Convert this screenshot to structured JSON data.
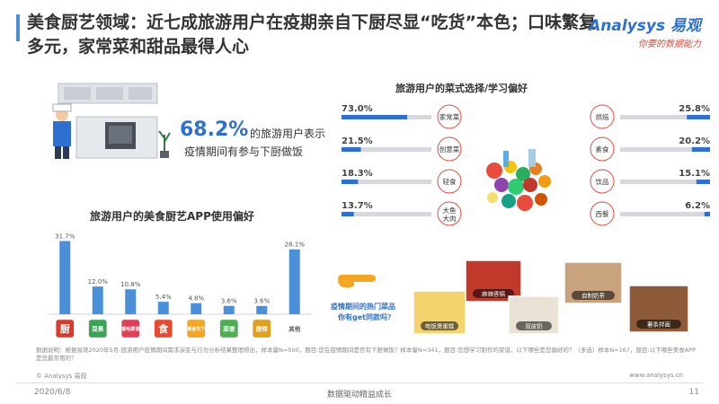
{
  "header": {
    "title": "美食厨艺领域：近七成旅游用户在疫期亲自下厨尽显“吃货”本色；口味繁复多元，家常菜和甜品最得人心",
    "brand": "Analysys 易观",
    "tagline": "你要的数据能力"
  },
  "highlight": {
    "percent": "68.2%",
    "text_line1": "的旅游用户表示",
    "text_line2": "疫情期间有参与下厨做饭"
  },
  "chart_data": [
    {
      "type": "bar",
      "title": "旅游用户的美食厨艺APP使用偏好",
      "categories": [
        "厨",
        "豆果",
        "香哈菜谱",
        "食",
        "美食天下",
        "菜谱",
        "厨师",
        "其他"
      ],
      "values": [
        31.7,
        12.0,
        10.8,
        5.4,
        4.8,
        3.6,
        3.6,
        28.1
      ],
      "value_labels": [
        "31.7%",
        "12.0%",
        "10.8%",
        "5.4%",
        "4.8%",
        "3.6%",
        "3.6%",
        "28.1%"
      ],
      "ylim": [
        0,
        35
      ],
      "colors": {
        "bar": "#4a90d9",
        "icons": [
          "#d93b2b",
          "#3aa655",
          "#e23e57",
          "#e8492f",
          "#f5a623",
          "#4caf50",
          "#e0a020",
          "#ffffff"
        ]
      }
    },
    {
      "type": "bar",
      "title": "旅游用户的菜式选择/学习偏好",
      "left": [
        {
          "name": "家常菜",
          "value": 73.0,
          "label": "73.0%"
        },
        {
          "name": "创意菜",
          "value": 21.5,
          "label": "21.5%"
        },
        {
          "name": "轻食",
          "value": 18.3,
          "label": "18.3%"
        },
        {
          "name": "大鱼大肉",
          "value": 13.7,
          "label": "13.7%"
        }
      ],
      "right": [
        {
          "name": "烘焙",
          "value": 25.8,
          "label": "25.8%"
        },
        {
          "name": "素食",
          "value": 20.2,
          "label": "20.2%"
        },
        {
          "name": "饮品",
          "value": 15.1,
          "label": "15.1%"
        },
        {
          "name": "西餐",
          "value": 6.2,
          "label": "6.2%"
        }
      ],
      "xlim": [
        0,
        100
      ],
      "colors": {
        "fill": "#2e6fd2",
        "track": "#d5d8dd",
        "circle_stroke": "#e04b3a"
      }
    }
  ],
  "hot_dishes": {
    "label_line1": "疫情期间的热门菜品",
    "label_line2": "你有get同款吗？",
    "items": [
      "电饭煲蛋糕",
      "麻辣香锅",
      "双皮奶",
      "自制奶茶",
      "薯条拌面"
    ]
  },
  "footer": {
    "note": "数据说明：根据易观2020年5月-旅游用户疫情期间需求演变与行为分析结果整理得出，样本量N=500，题目:您在疫情期间是否有下厨做饭？样本量N=341，题目:您想学习制作的菜谱，以下哪些是您偏好的？（多选）样本N=167，题目:以下哪些美食APP是您最常用的？",
    "copyright": "© Analysys 易观",
    "website": "www.analysys.cn",
    "date": "2020/6/8",
    "slogan": "数据驱动精益成长",
    "page": "11"
  }
}
